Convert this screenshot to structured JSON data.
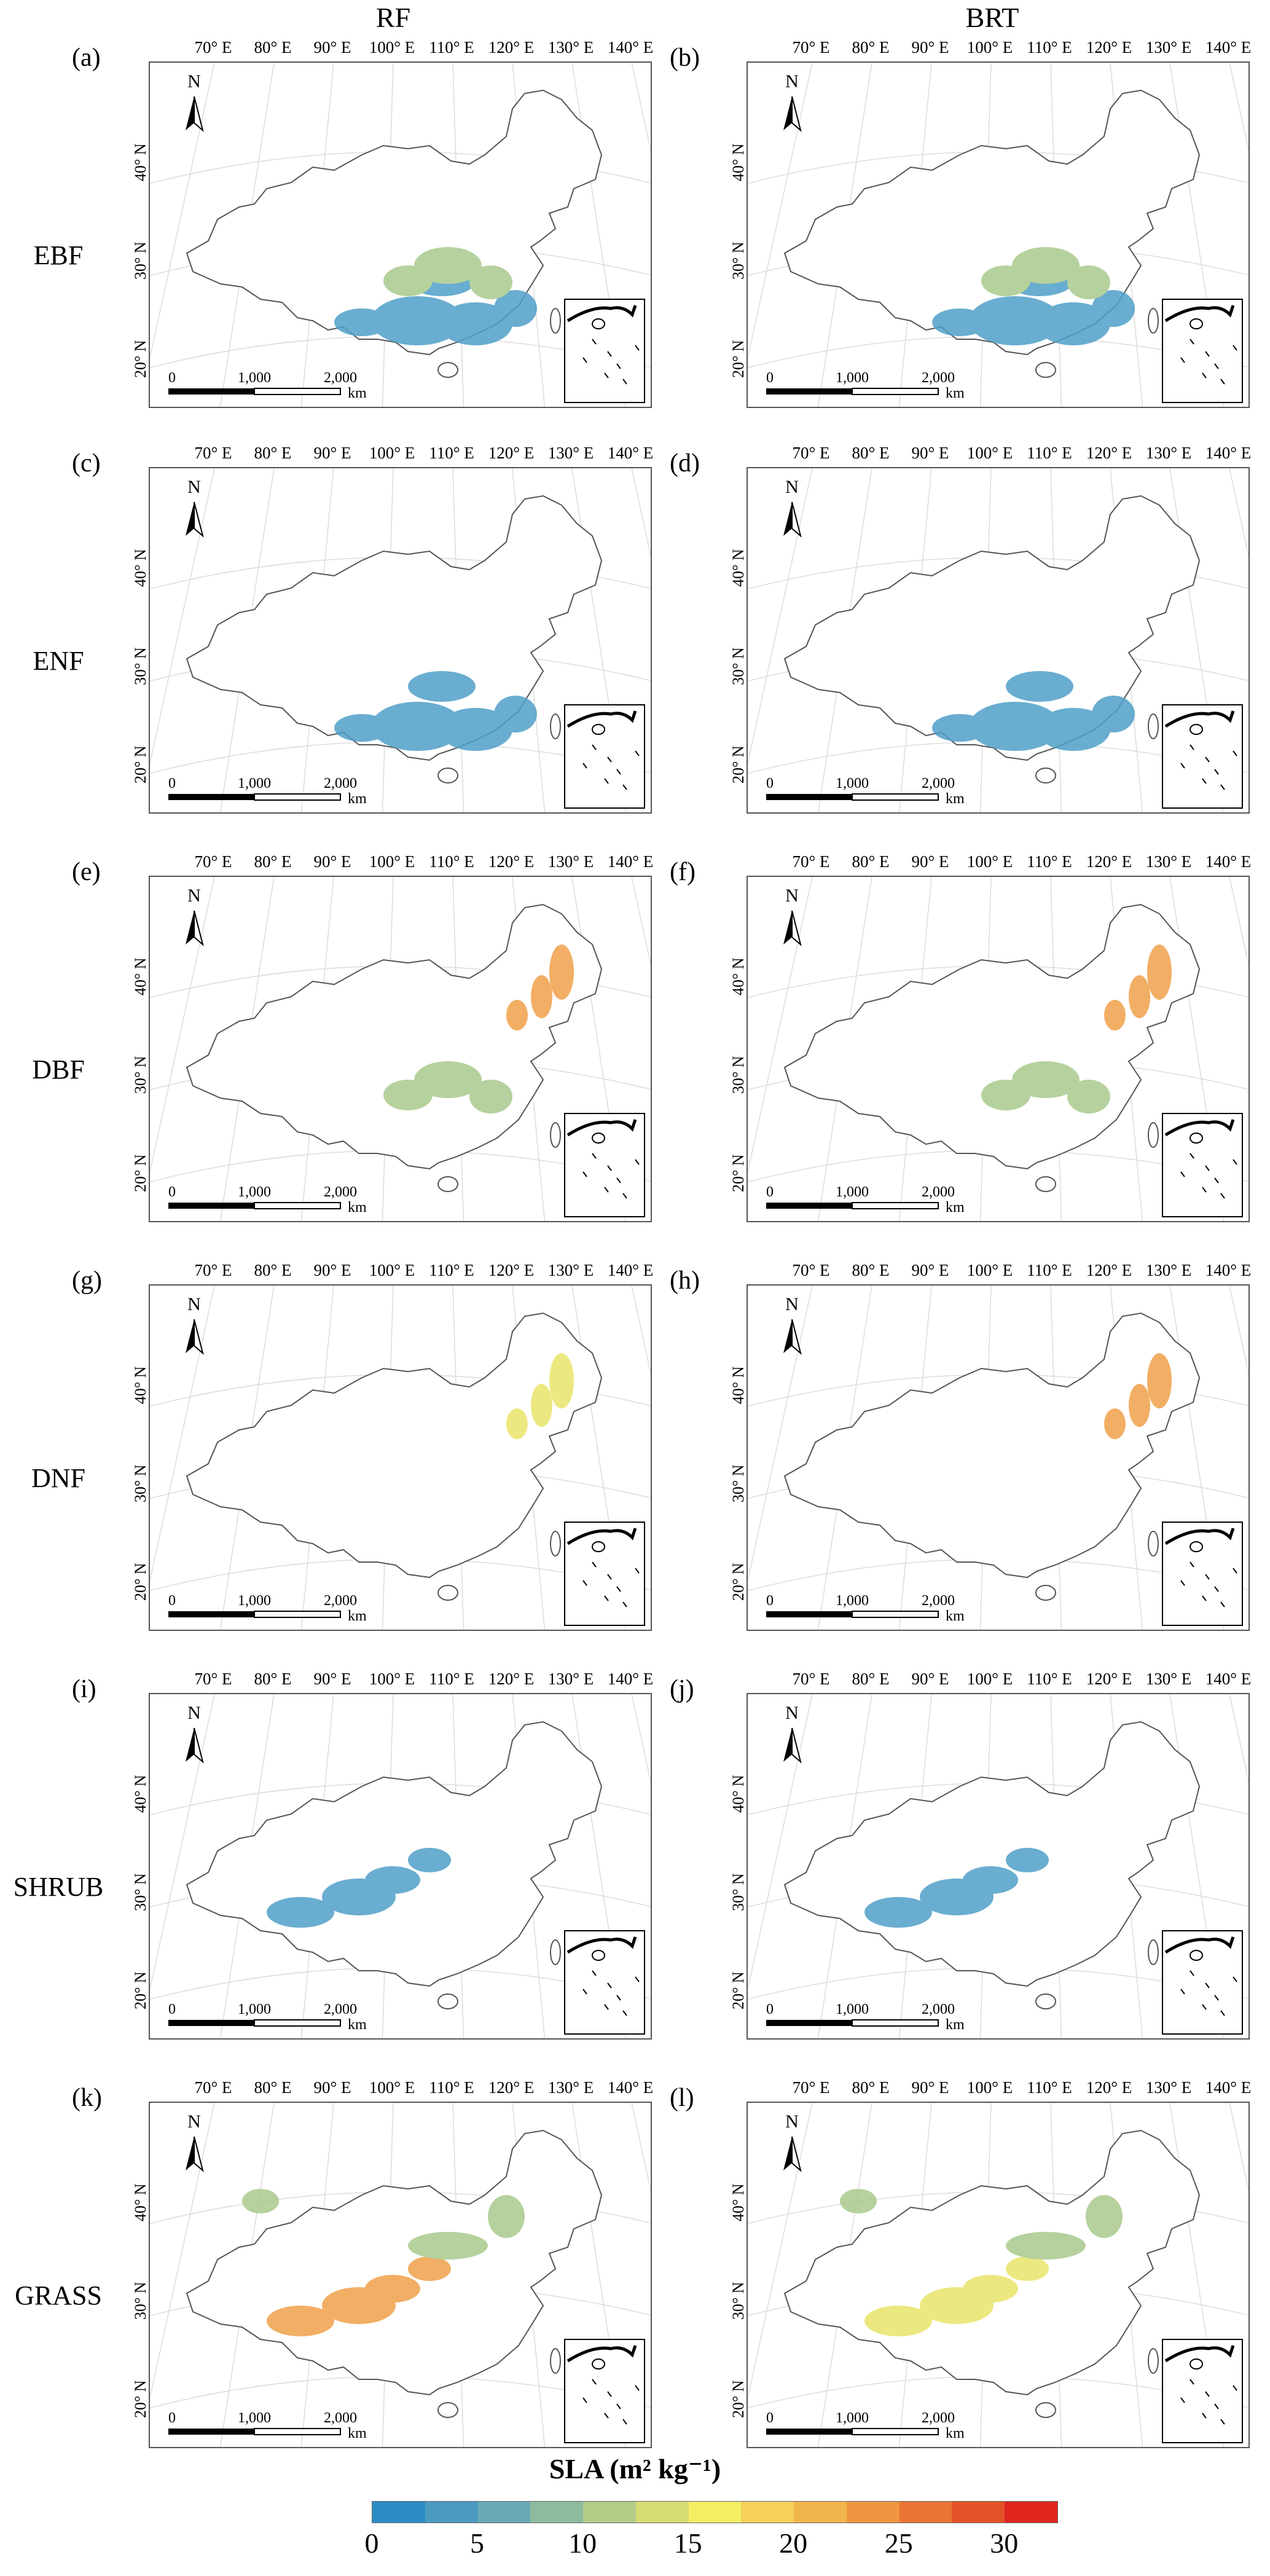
{
  "columns": [
    "RF",
    "BRT"
  ],
  "rows": [
    "EBF",
    "ENF",
    "DBF",
    "DNF",
    "SHRUB",
    "GRASS"
  ],
  "panel_letters": [
    [
      "(a)",
      "(b)"
    ],
    [
      "(c)",
      "(d)"
    ],
    [
      "(e)",
      "(f)"
    ],
    [
      "(g)",
      "(h)"
    ],
    [
      "(i)",
      "(j)"
    ],
    [
      "(k)",
      "(l)"
    ]
  ],
  "lon_labels": [
    "70° E",
    "80° E",
    "90° E",
    "100° E",
    "110° E",
    "120° E",
    "130° E",
    "140° E"
  ],
  "lat_labels": [
    "40° N",
    "30° N",
    "20° N"
  ],
  "north_label": "N",
  "scale_bar": {
    "zero": "0",
    "mid": "1,000",
    "end": "2,000",
    "unit": "km"
  },
  "legend": {
    "title": "SLA (m² kg⁻¹)",
    "ticks": [
      "0",
      "5",
      "10",
      "15",
      "20",
      "25",
      "30"
    ],
    "colors": [
      "#2b8cc4",
      "#4a9ac0",
      "#6aa8b6",
      "#8dbba0",
      "#b3cc88",
      "#d6dd72",
      "#f3ee64",
      "#f5d15a",
      "#f2b44c",
      "#ef9640",
      "#e97434",
      "#e45229",
      "#e0261f"
    ]
  },
  "patches": {
    "EBF": {
      "rf": [
        [
          "blue",
          "south"
        ],
        [
          "green",
          "central"
        ]
      ],
      "brt": [
        [
          "blue",
          "south"
        ],
        [
          "green",
          "central"
        ]
      ]
    },
    "ENF": {
      "rf": [
        [
          "blue",
          "south"
        ]
      ],
      "brt": [
        [
          "blue",
          "south"
        ]
      ]
    },
    "DBF": {
      "rf": [
        [
          "orange",
          "northeast"
        ],
        [
          "green",
          "central"
        ]
      ],
      "brt": [
        [
          "orange",
          "northeast"
        ],
        [
          "green",
          "central"
        ]
      ]
    },
    "DNF": {
      "rf": [
        [
          "yellow",
          "northeast"
        ]
      ],
      "brt": [
        [
          "orange",
          "northeast"
        ]
      ]
    },
    "SHRUB": {
      "rf": [
        [
          "blue",
          "west"
        ]
      ],
      "brt": [
        [
          "blue",
          "west"
        ]
      ]
    },
    "GRASS": {
      "rf": [
        [
          "orange",
          "west"
        ],
        [
          "green",
          "north"
        ]
      ],
      "brt": [
        [
          "yellow",
          "west"
        ],
        [
          "green",
          "north"
        ]
      ]
    }
  }
}
